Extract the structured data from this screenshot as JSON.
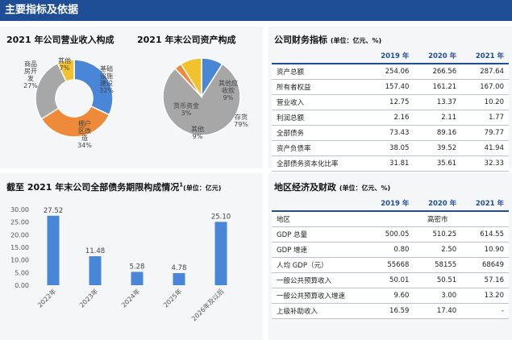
{
  "header": {
    "title": "主要指标及依据"
  },
  "charts": {
    "revenue_title": "2021 年公司营业收入构成",
    "assets_title": "2021 年末公司资产构成",
    "debt_title": "截至 2021 年末公司全部债务期限构成情况",
    "debt_title_sup": "1",
    "debt_unit": "(单位：亿元)"
  },
  "chart_data": [
    {
      "type": "pie",
      "title": "2021 年公司营业收入构成",
      "slices": [
        {
          "label": "基础设施建设",
          "display_label": [
            "基础",
            "设施",
            "建设",
            "32%"
          ],
          "value": 32,
          "color": "#4a86d8"
        },
        {
          "label": "棚户区改造",
          "display_label": [
            "棚户",
            "区改",
            "造",
            "34%"
          ],
          "value": 34,
          "color": "#ef8a3a"
        },
        {
          "label": "商品房开发",
          "display_label": [
            "商品",
            "房开",
            "发",
            "27%"
          ],
          "value": 27,
          "color": "#a7a7a7"
        },
        {
          "label": "其他",
          "display_label": [
            "其他",
            "7%"
          ],
          "value": 7,
          "color": "#f2c12e"
        }
      ]
    },
    {
      "type": "pie",
      "title": "2021 年末公司资产构成",
      "slices": [
        {
          "label": "其他应收款",
          "display_label": [
            "其他应",
            "收款",
            "9%"
          ],
          "value": 9,
          "color": "#4a86d8"
        },
        {
          "label": "存货",
          "display_label": [
            "存货",
            "79%"
          ],
          "value": 79,
          "color": "#a7a7a7"
        },
        {
          "label": "货币资金",
          "display_label": [
            "货币资金",
            "3%"
          ],
          "value": 3,
          "color": "#ef8a3a"
        },
        {
          "label": "其他",
          "display_label": [
            "其他",
            "9%"
          ],
          "value": 9,
          "color": "#f2c12e"
        }
      ]
    },
    {
      "type": "bar",
      "title": "截至 2021 年末公司全部债务期限构成情况",
      "categories": [
        "2022年",
        "2023年",
        "2024年",
        "2025年",
        "2026年及以后"
      ],
      "values": [
        27.52,
        11.48,
        5.28,
        4.78,
        25.1
      ],
      "value_labels": [
        "27.52",
        "11.48",
        "5.28",
        "4.78",
        "25.10"
      ],
      "ylim": [
        0,
        30
      ],
      "yticks": [
        "0.00",
        "5.00",
        "10.00",
        "15.00",
        "20.00",
        "25.00",
        "30.00"
      ],
      "color": "#4a86d8"
    }
  ],
  "financial": {
    "title": "公司财务指标",
    "unit": "(单位：亿元、%)",
    "headers": [
      "",
      "2019 年",
      "2020 年",
      "2021 年"
    ],
    "rows": [
      [
        "资产总额",
        "254.06",
        "266.56",
        "287.64"
      ],
      [
        "所有者权益",
        "157.40",
        "161.21",
        "167.00"
      ],
      [
        "营业收入",
        "12.75",
        "13.37",
        "10.20"
      ],
      [
        "利润总额",
        "2.16",
        "2.11",
        "1.77"
      ],
      [
        "全部债务",
        "73.43",
        "89.16",
        "79.77"
      ],
      [
        "资产负债率",
        "38.05",
        "39.52",
        "41.94"
      ],
      [
        "全部债务资本化比率",
        "31.81",
        "35.61",
        "32.33"
      ]
    ]
  },
  "regional": {
    "title": "地区经济及财政",
    "unit": "(单位：亿元、%)",
    "headers": [
      "",
      "2019 年",
      "2020 年",
      "2021 年"
    ],
    "region_label": "地区",
    "region_value": "高密市",
    "rows": [
      [
        "GDP 总量",
        "500.05",
        "510.25",
        "614.55"
      ],
      [
        "GDP 增速",
        "0.80",
        "2.50",
        "10.90"
      ],
      [
        "人均 GDP（元）",
        "55668",
        "58155",
        "68649"
      ],
      [
        "一般公共预算收入",
        "50.01",
        "50.51",
        "57.16"
      ],
      [
        "一般公共预算收入增速",
        "9.60",
        "3.00",
        "13.20"
      ],
      [
        "上级补助收入",
        "16.59",
        "17.40",
        "-"
      ]
    ]
  }
}
